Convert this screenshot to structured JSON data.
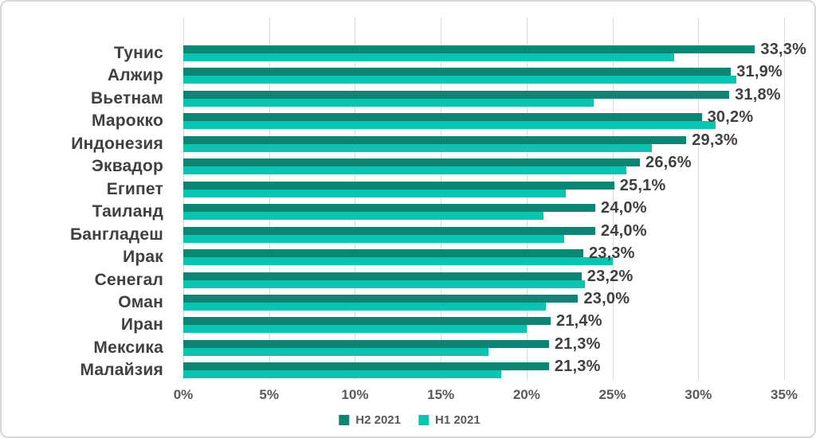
{
  "chart_data": {
    "type": "bar",
    "orientation": "horizontal",
    "title": "",
    "xlabel": "",
    "ylabel": "",
    "categories": [
      "Тунис",
      "Алжир",
      "Вьетнам",
      "Марокко",
      "Индонезия",
      "Эквадор",
      "Египет",
      "Таиланд",
      "Бангладеш",
      "Ирак",
      "Сенегал",
      "Оман",
      "Иран",
      "Мексика",
      "Малайзия"
    ],
    "series": [
      {
        "name": "H2 2021",
        "color": "#0c8575",
        "values": [
          33.3,
          31.9,
          31.8,
          30.2,
          29.3,
          26.6,
          25.1,
          24.0,
          24.0,
          23.3,
          23.2,
          23.0,
          21.4,
          21.3,
          21.3
        ],
        "data_labels": [
          "33,3%",
          "31,9%",
          "31,8%",
          "30,2%",
          "29,3%",
          "26,6%",
          "25,1%",
          "24,0%",
          "24,0%",
          "23,3%",
          "23,2%",
          "23,0%",
          "21,4%",
          "21,3%",
          "21,3%"
        ]
      },
      {
        "name": "H1 2021",
        "color": "#09c4b1",
        "values": [
          28.6,
          32.2,
          23.9,
          31.0,
          27.3,
          25.8,
          22.3,
          21.0,
          22.2,
          25.0,
          23.4,
          21.1,
          20.0,
          17.8,
          18.5
        ],
        "data_labels": []
      }
    ],
    "x_axis": {
      "min": 0,
      "max": 35,
      "step": 5,
      "tick_values": [
        0,
        5,
        10,
        15,
        20,
        25,
        30,
        35
      ],
      "tick_labels": [
        "0%",
        "5%",
        "10%",
        "15%",
        "20%",
        "25%",
        "30%",
        "35%"
      ]
    },
    "grid": true,
    "legend_position": "bottom"
  },
  "style": {
    "gridline_color": "#d9d9d9",
    "label_color": "#404040",
    "tick_color": "#595959",
    "border_color": "#d8d8d8"
  }
}
